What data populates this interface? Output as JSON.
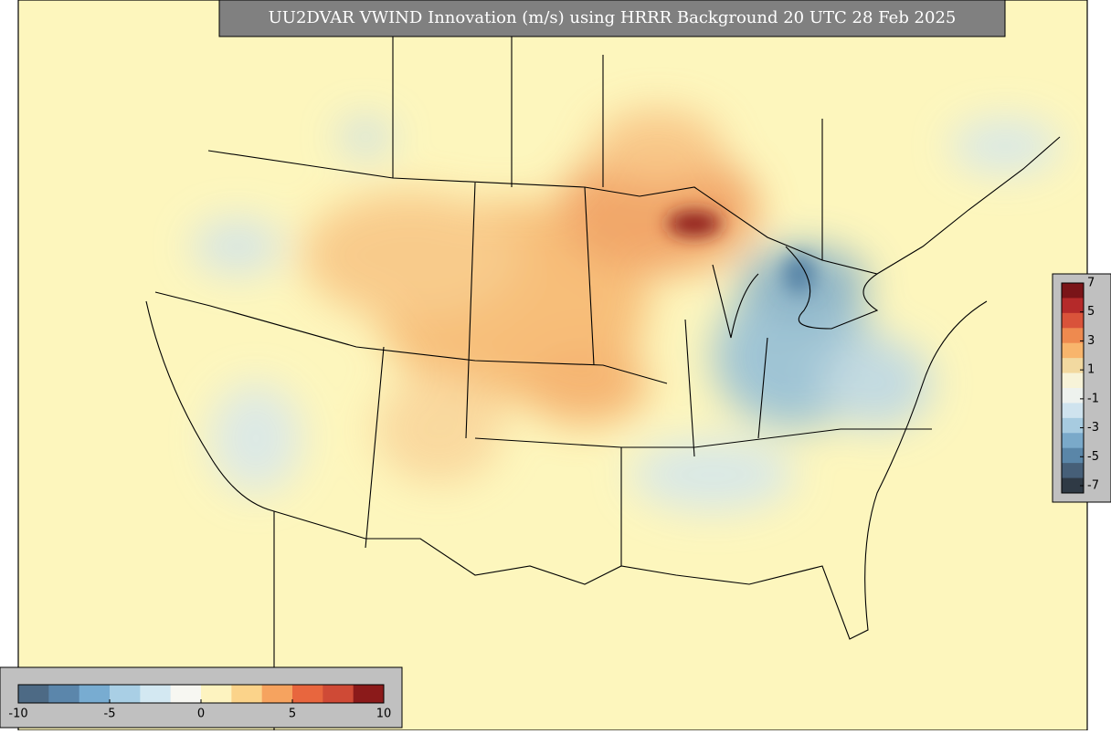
{
  "title": "UU2DVAR VWIND Innovation (m/s) using HRRR Background 20 UTC 28 Feb 2025",
  "colorbar_bottom": {
    "range": [
      -10,
      10
    ],
    "ticks": [
      -10,
      -5,
      0,
      5,
      10
    ],
    "colors": [
      "#4d6a85",
      "#5b86ab",
      "#78acd1",
      "#a9cfe5",
      "#d3e8f2",
      "#f7f7f2",
      "#fdf3c0",
      "#fbd38a",
      "#f6a35f",
      "#e8663e",
      "#cf4a36",
      "#8b1a1a"
    ]
  },
  "colorbar_right": {
    "range": [
      -7,
      7
    ],
    "ticks": [
      7,
      5,
      3,
      1,
      -1,
      -3,
      -5,
      -7
    ],
    "colors": [
      "#7a1418",
      "#b52a2a",
      "#d9533a",
      "#ee8a4f",
      "#f8b56c",
      "#f2d9a0",
      "#f7f3d8",
      "#eef2ee",
      "#cfe3ee",
      "#a7cbe0",
      "#7aa9c9",
      "#5a86a8",
      "#465f78",
      "#2f3a45"
    ]
  }
}
